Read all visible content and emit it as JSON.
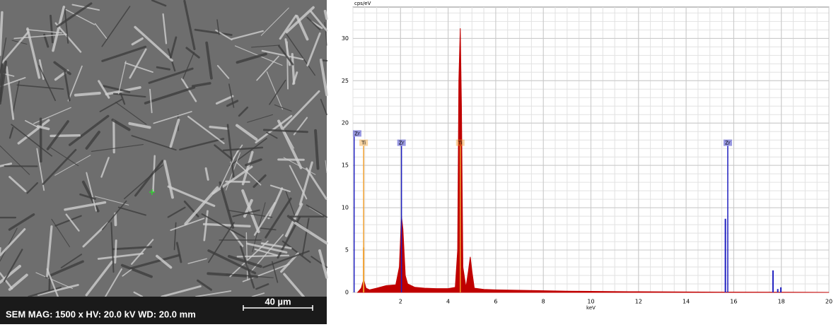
{
  "sem": {
    "info": "SEM  MAG: 1500 x  HV: 20.0 kV  WD: 20.0 mm",
    "scale": "40 µm"
  },
  "chart_data": {
    "type": "line",
    "y_label": "cps/eV",
    "x_label": "keV",
    "x": [
      0.2,
      0.35,
      0.45,
      0.55,
      0.7,
      1.0,
      1.4,
      1.8,
      1.95,
      2.04,
      2.1,
      2.2,
      2.3,
      2.6,
      3.0,
      3.5,
      4.0,
      4.3,
      4.4,
      4.45,
      4.51,
      4.56,
      4.62,
      4.75,
      4.85,
      4.93,
      5.0,
      5.1,
      5.5,
      6,
      7,
      8,
      9,
      10,
      12,
      14,
      16,
      18,
      20
    ],
    "values": [
      0,
      0.5,
      1.5,
      0.5,
      0.3,
      0.5,
      0.8,
      0.9,
      3,
      9,
      7.5,
      2,
      1,
      0.6,
      0.5,
      0.45,
      0.45,
      0.6,
      5,
      25,
      31.2,
      22,
      3,
      0.6,
      2.5,
      4.2,
      2.5,
      0.5,
      0.35,
      0.3,
      0.25,
      0.2,
      0.15,
      0.12,
      0.08,
      0.05,
      0.03,
      0.02,
      0
    ],
    "color": "#c00000",
    "lines": [
      {
        "x": 0.45,
        "value": 5.3,
        "color": "#f0a030"
      },
      {
        "x": 15.65,
        "value": 8.7,
        "color": "#2020c0"
      },
      {
        "x": 17.65,
        "value": 2.6,
        "color": "#2020c0"
      },
      {
        "x": 17.85,
        "value": 0.4,
        "color": "#2020c0"
      },
      {
        "x": 17.98,
        "value": 0.6,
        "color": "#2020c0"
      }
    ],
    "markers": [
      {
        "text": "Zr",
        "x": 0.05,
        "y": 18.4,
        "color": "#2020c0"
      },
      {
        "text": "Ti",
        "x": 0.45,
        "y": 17.3,
        "color": "#f0a030"
      },
      {
        "text": "Zr",
        "x": 2.04,
        "y": 17.3,
        "color": "#2020c0"
      },
      {
        "text": "Ti",
        "x": 4.51,
        "y": 17.3,
        "color": "#f0a030"
      },
      {
        "text": "Zr",
        "x": 15.75,
        "y": 17.3,
        "color": "#2020c0"
      }
    ],
    "xlim": [
      0,
      20
    ],
    "ylim": [
      0,
      33.7
    ],
    "xticks": [
      2,
      4,
      6,
      8,
      10,
      12,
      14,
      16,
      18,
      20
    ],
    "yticks": [
      0,
      5,
      10,
      15,
      20,
      25,
      30
    ],
    "grid": true
  }
}
